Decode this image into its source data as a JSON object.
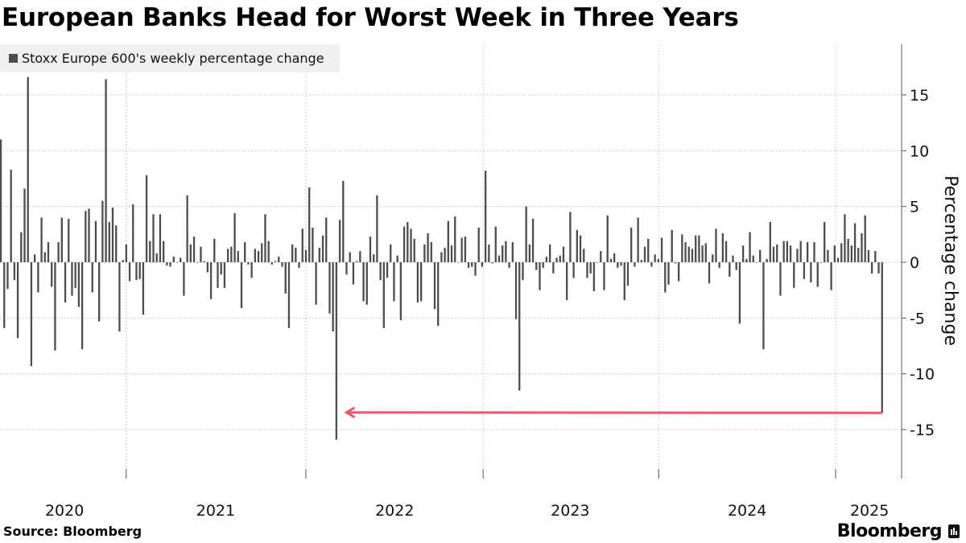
{
  "header": {
    "title": "European Banks Head for Worst Week in Three Years"
  },
  "footer": {
    "source": "Source: Bloomberg",
    "brand": "Bloomberg"
  },
  "colors": {
    "bar": "#4d4d4d",
    "annotation": "#e8596e",
    "grid": "#c8c8c8",
    "legend_bg": "#f0f0f0"
  },
  "chart_data": {
    "type": "bar",
    "title": "European Banks Head for Worst Week in Three Years",
    "legend": {
      "label": "Stoxx Europe 600's weekly percentage change",
      "placement": "top-left"
    },
    "ylabel": "Percentage change",
    "xlabel": "",
    "ylim": [
      -19.4,
      19.5
    ],
    "yticks": [
      15,
      10,
      5,
      0,
      -5,
      -10,
      -15
    ],
    "ytick_labels": [
      "15",
      "10",
      "5",
      "0",
      "-5",
      "-10",
      "-15"
    ],
    "grid": true,
    "x_unit": "week index (week 0 ≈ mid-March 2020, weekly)",
    "year_boundaries_week": [
      37.0,
      90.0,
      142.3,
      194.1,
      246.3
    ],
    "year_labels": [
      {
        "label": "2020",
        "week": 18.8
      },
      {
        "label": "2021",
        "week": 63.4
      },
      {
        "label": "2022",
        "week": 116.2
      },
      {
        "label": "2023",
        "week": 168.0
      },
      {
        "label": "2024",
        "week": 220.2
      },
      {
        "label": "2025",
        "week": 256.3
      }
    ],
    "values": [
      11.0,
      -5.9,
      -2.4,
      8.3,
      -1.6,
      -6.8,
      2.7,
      6.6,
      16.6,
      -9.3,
      0.7,
      -2.7,
      4.0,
      0.9,
      1.8,
      -2.2,
      -7.9,
      1.8,
      4.0,
      -3.6,
      3.9,
      -3.0,
      -2.3,
      -4.0,
      -7.8,
      4.6,
      4.8,
      -2.7,
      3.7,
      -5.3,
      5.5,
      16.4,
      3.6,
      4.9,
      3.3,
      -6.2,
      0.2,
      1.6,
      -1.7,
      5.2,
      -1.6,
      -1.5,
      -4.7,
      7.8,
      1.9,
      4.3,
      0.8,
      4.3,
      1.9,
      -0.3,
      -0.4,
      0.5,
      0,
      0.4,
      -3.0,
      6.0,
      1.6,
      2.3,
      0,
      1.4,
      0.1,
      -0.9,
      -3.3,
      2.1,
      -2.3,
      -1.1,
      -2.3,
      1.2,
      1.4,
      4.4,
      1.0,
      -4.1,
      1.8,
      -0.2,
      -1.4,
      1.2,
      1.0,
      1.7,
      4.3,
      1.9,
      -0.2,
      0.1,
      0.5,
      -0.4,
      -2.8,
      -5.9,
      1.6,
      1.3,
      -0.5,
      3.0,
      1.1,
      6.7,
      3.1,
      -3.8,
      1.3,
      2.4,
      4.0,
      -4.6,
      -6.2,
      -15.9,
      3.8,
      7.3,
      -1.1,
      0.9,
      -2.0,
      0.1,
      1.0,
      -3.5,
      -3.8,
      2.3,
      0.7,
      6.0,
      -1.6,
      -5.9,
      -1.4,
      1.6,
      -3.5,
      0.6,
      -5.2,
      3.2,
      3.6,
      3.0,
      2.1,
      -3.6,
      -3.5,
      1.6,
      2.6,
      1.8,
      -4.2,
      -5.7,
      0.9,
      1.3,
      3.7,
      1.5,
      4.1,
      0,
      2.2,
      2.3,
      -0.5,
      -0.4,
      -1.2,
      3.1,
      -0.4,
      8.2,
      1.6,
      -0.1,
      3.2,
      0.6,
      1.5,
      1.9,
      -0.5,
      1.8,
      -5.1,
      -11.5,
      -1.6,
      5.0,
      1.6,
      3.9,
      -0.7,
      -2.5,
      -0.5,
      0.5,
      1.6,
      -1.0,
      0.4,
      0.6,
      1.4,
      -3.4,
      4.5,
      -1.4,
      2.9,
      2.4,
      1.2,
      -1.4,
      -1.0,
      -2.6,
      0,
      1.0,
      -2.5,
      4.2,
      0.3,
      0.8,
      -0.5,
      -0.3,
      -3.4,
      -2.1,
      3.1,
      -0.4,
      4.0,
      0.2,
      1.4,
      2.1,
      -0.4,
      0.7,
      0.3,
      2.2,
      -2.7,
      -2.0,
      2.9,
      -0.1,
      -1.7,
      2.5,
      1.8,
      1.4,
      1.2,
      2.4,
      2.4,
      1.5,
      1.7,
      -1.9,
      0.7,
      3.0,
      -0.5,
      2.6,
      1.9,
      -1.3,
      0.6,
      -0.7,
      -5.5,
      1.5,
      0.3,
      2.7,
      0.6,
      0,
      1.1,
      -7.8,
      0.3,
      3.6,
      1.4,
      1.6,
      -3.0,
      1.9,
      1.9,
      1.5,
      -2.3,
      1.2,
      1.9,
      -1.5,
      1.8,
      -1.8,
      1.8,
      -2.2,
      0,
      3.6,
      1.1,
      -2.5,
      1.5,
      0.4,
      1.7,
      4.3,
      2.1,
      1.5,
      3.5,
      1.3,
      2.6,
      4.2,
      1.1,
      -1.0,
      1.0,
      -1.0,
      -13.5
    ],
    "annotation": {
      "type": "arrow",
      "from": [
        260,
        -13.5
      ],
      "to": [
        102,
        -13.5
      ]
    }
  }
}
